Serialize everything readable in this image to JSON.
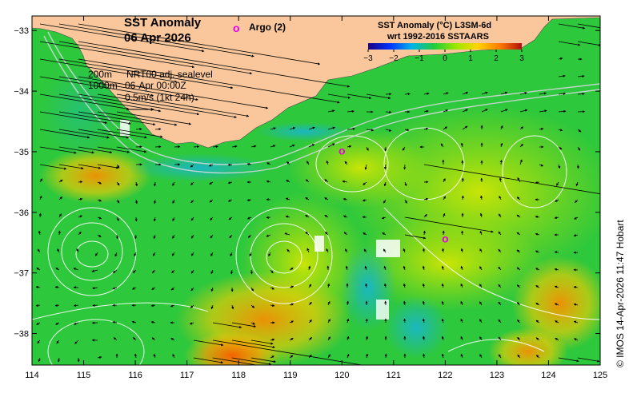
{
  "map": {
    "title": "SST Anomaly",
    "date": "06 Apr 2026",
    "argo_marker": "o",
    "argo_label": "Argo (2)",
    "legend": {
      "title_line1": "SST Anomaly (°C) L3SM-6d",
      "title_line2": "wrt 1992-2016 SSTAARS",
      "ticks": [
        "−3",
        "−2",
        "−1",
        "0",
        "1",
        "2",
        "3"
      ],
      "colors": [
        "#1a0080",
        "#0033ff",
        "#00b4e6",
        "#1ecc3c",
        "#9be800",
        "#ffd400",
        "#ff7a00",
        "#b01010"
      ]
    },
    "info": {
      "contour_depth": "200m",
      "contour_name": "NRT00 adj. sealevel",
      "isobath_depth": "1000m",
      "timestamp": "06-Apr 00:00Z",
      "scale_label": "0.5m/s (1kt 24h)"
    },
    "x_ticks": [
      "114",
      "115",
      "116",
      "117",
      "118",
      "119",
      "120",
      "121",
      "122",
      "123",
      "124",
      "125"
    ],
    "y_ticks": [
      "−33",
      "−34",
      "−35",
      "−36",
      "−37",
      "−38"
    ],
    "argo_floats": [
      {
        "label": "o",
        "lon": 120.0,
        "lat": -34.98
      },
      {
        "label": "o",
        "lon": 122.0,
        "lat": -36.43
      }
    ],
    "copyright": "© IMOS 14-Apr-2026 11:47 Hobart",
    "colors": {
      "land": "#f9c79b",
      "argo": "#e800e8",
      "ocean_base": "#2ec83c",
      "contour": "#ffffff",
      "arrow": "#000000"
    }
  }
}
